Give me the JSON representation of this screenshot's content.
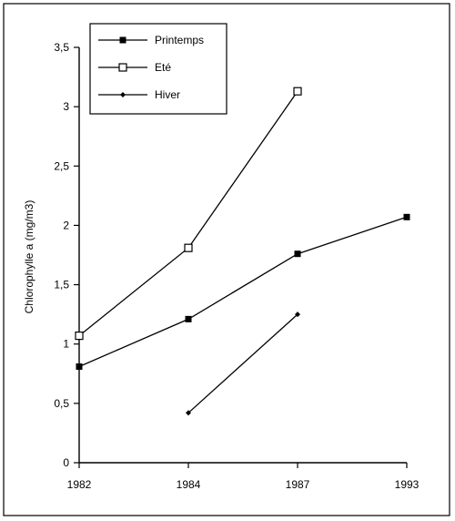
{
  "chart_data": {
    "type": "line",
    "title": "",
    "xlabel": "",
    "ylabel": "Chlorophylle a  (mg/m3)",
    "categories": [
      "1982",
      "1984",
      "1987",
      "1993"
    ],
    "y_tick_labels": [
      "0",
      "0,5",
      "1",
      "1,5",
      "2",
      "2,5",
      "3",
      "3,5"
    ],
    "y_ticks": [
      0,
      0.5,
      1,
      1.5,
      2,
      2.5,
      3,
      3.5
    ],
    "ylim": [
      0,
      3.5
    ],
    "grid": false,
    "legend_position": "top-left",
    "series": [
      {
        "name": "Printemps",
        "marker": "filled-square",
        "values": [
          0.81,
          1.21,
          1.76,
          2.07
        ]
      },
      {
        "name": "Eté",
        "marker": "open-square",
        "values": [
          1.07,
          1.81,
          3.13,
          null
        ]
      },
      {
        "name": "Hiver",
        "marker": "small-diamond",
        "values": [
          null,
          0.42,
          1.25,
          null
        ]
      }
    ]
  }
}
